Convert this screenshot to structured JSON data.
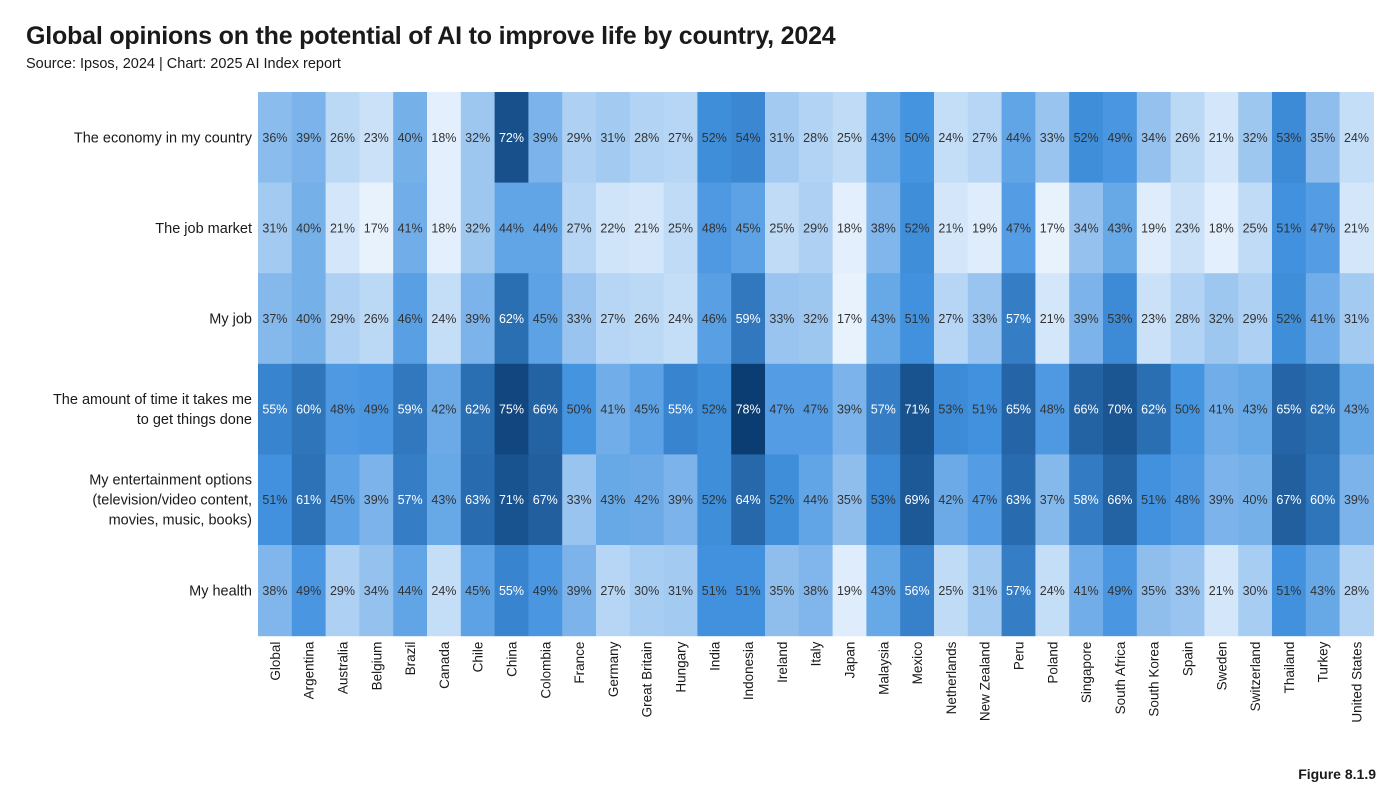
{
  "chart_data": {
    "type": "heatmap",
    "title": "Global opinions on the potential of AI to improve life by country, 2024",
    "subtitle": "Source: Ipsos, 2024 | Chart: 2025 AI Index report",
    "figure_label": "Figure 8.1.9",
    "value_suffix": "%",
    "value_range": [
      17,
      78
    ],
    "colors": {
      "low": "#eaf3fd",
      "high": "#0b3d73",
      "text_dark": "#333333",
      "text_light": "#ffffff"
    },
    "rows": [
      [
        "The economy in my country"
      ],
      [
        "The job market"
      ],
      [
        "My job"
      ],
      [
        "The amount of time it takes me",
        "to get things done"
      ],
      [
        "My entertainment options",
        "(television/video content,",
        "movies, music, books)"
      ],
      [
        "My health"
      ]
    ],
    "columns": [
      "Global",
      "Argentina",
      "Australia",
      "Belgium",
      "Brazil",
      "Canada",
      "Chile",
      "China",
      "Colombia",
      "France",
      "Germany",
      "Great Britain",
      "Hungary",
      "India",
      "Indonesia",
      "Ireland",
      "Italy",
      "Japan",
      "Malaysia",
      "Mexico",
      "Netherlands",
      "New Zealand",
      "Peru",
      "Poland",
      "Singapore",
      "South Africa",
      "South Korea",
      "Spain",
      "Sweden",
      "Switzerland",
      "Thailand",
      "Turkey",
      "United States"
    ],
    "values": [
      [
        36,
        39,
        26,
        23,
        40,
        18,
        32,
        72,
        39,
        29,
        31,
        28,
        27,
        52,
        54,
        31,
        28,
        25,
        43,
        50,
        24,
        27,
        44,
        33,
        52,
        49,
        34,
        26,
        21,
        32,
        53,
        35,
        24
      ],
      [
        31,
        40,
        21,
        17,
        41,
        18,
        32,
        44,
        44,
        27,
        22,
        21,
        25,
        48,
        45,
        25,
        29,
        18,
        38,
        52,
        21,
        19,
        47,
        17,
        34,
        43,
        19,
        23,
        18,
        25,
        51,
        47,
        21
      ],
      [
        37,
        40,
        29,
        26,
        46,
        24,
        39,
        62,
        45,
        33,
        27,
        26,
        24,
        46,
        59,
        33,
        32,
        17,
        43,
        51,
        27,
        33,
        57,
        21,
        39,
        53,
        23,
        28,
        32,
        29,
        52,
        41,
        31
      ],
      [
        55,
        60,
        48,
        49,
        59,
        42,
        62,
        75,
        66,
        50,
        41,
        45,
        55,
        52,
        78,
        47,
        47,
        39,
        57,
        71,
        53,
        51,
        65,
        48,
        66,
        70,
        62,
        50,
        41,
        43,
        65,
        62,
        43
      ],
      [
        51,
        61,
        45,
        39,
        57,
        43,
        63,
        71,
        67,
        33,
        43,
        42,
        39,
        52,
        64,
        52,
        44,
        35,
        53,
        69,
        42,
        47,
        63,
        37,
        58,
        66,
        51,
        48,
        39,
        40,
        67,
        60,
        39
      ],
      [
        38,
        49,
        29,
        34,
        44,
        24,
        45,
        55,
        49,
        39,
        27,
        30,
        31,
        51,
        51,
        35,
        38,
        19,
        43,
        56,
        25,
        31,
        57,
        24,
        41,
        49,
        35,
        33,
        21,
        30,
        51,
        43,
        28
      ]
    ]
  }
}
